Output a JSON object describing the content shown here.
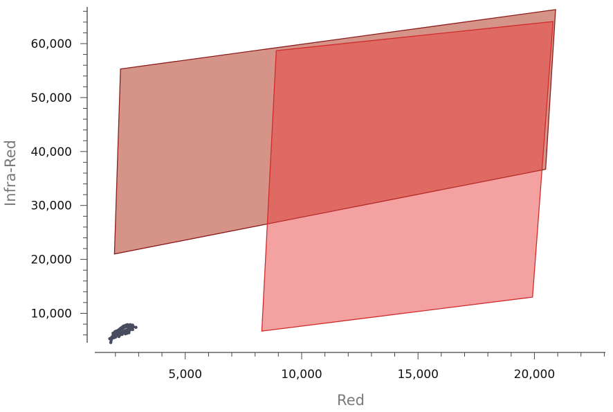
{
  "chart_data": {
    "type": "scatter",
    "title": "",
    "xlabel": "Red",
    "ylabel": "Infra-Red",
    "xlim": [
      0,
      23000
    ],
    "ylim": [
      4000,
      66500
    ],
    "x_ticks": [
      5000,
      10000,
      15000,
      20000
    ],
    "x_tick_labels": [
      "5,000",
      "10,000",
      "15,000",
      "20,000"
    ],
    "y_ticks": [
      10000,
      20000,
      30000,
      40000,
      50000,
      60000
    ],
    "y_tick_labels": [
      "10,000",
      "20,000",
      "30,000",
      "40,000",
      "50,000",
      "60,000"
    ],
    "grid": false,
    "legend": "none",
    "regions": [
      {
        "fill": "#c05a4a",
        "fill_opacity": 0.65,
        "stroke": "#8b1a1a",
        "vertices": [
          [
            2220,
            55300
          ],
          [
            20910,
            66300
          ],
          [
            20480,
            36700
          ],
          [
            1960,
            21000
          ]
        ]
      },
      {
        "fill": "#e83a3a",
        "fill_opacity": 0.48,
        "stroke": "#d02a2a",
        "vertices": [
          [
            8910,
            58700
          ],
          [
            20800,
            64100
          ],
          [
            19920,
            13000
          ],
          [
            8290,
            6700
          ]
        ]
      }
    ],
    "point_color": "#474d5e",
    "points": [
      [
        1800,
        4600
      ],
      [
        1760,
        5300
      ],
      [
        1850,
        5600
      ],
      [
        1900,
        5900
      ],
      [
        1960,
        6100
      ],
      [
        2020,
        6250
      ],
      [
        2080,
        6500
      ],
      [
        2140,
        6700
      ],
      [
        2200,
        6900
      ],
      [
        2260,
        7050
      ],
      [
        2320,
        7250
      ],
      [
        2380,
        7400
      ],
      [
        2440,
        7500
      ],
      [
        2500,
        7600
      ],
      [
        2560,
        7650
      ],
      [
        2620,
        7600
      ],
      [
        2680,
        7500
      ],
      [
        2880,
        7400
      ],
      [
        1820,
        5000
      ],
      [
        1880,
        5400
      ],
      [
        1940,
        5500
      ],
      [
        2000,
        5800
      ],
      [
        2060,
        6000
      ],
      [
        2120,
        6100
      ],
      [
        2180,
        6300
      ],
      [
        2240,
        6400
      ],
      [
        2300,
        6500
      ],
      [
        2360,
        6700
      ],
      [
        2420,
        6800
      ],
      [
        2480,
        6900
      ],
      [
        2540,
        7000
      ],
      [
        2600,
        7100
      ],
      [
        2660,
        7200
      ],
      [
        2720,
        7300
      ],
      [
        2140,
        5900
      ],
      [
        2200,
        6000
      ],
      [
        2260,
        6200
      ],
      [
        2320,
        6300
      ],
      [
        2380,
        6600
      ],
      [
        2440,
        6700
      ],
      [
        2500,
        6800
      ],
      [
        2560,
        7300
      ],
      [
        2620,
        7400
      ],
      [
        2680,
        7700
      ],
      [
        2740,
        7800
      ],
      [
        2100,
        6800
      ],
      [
        2160,
        7000
      ],
      [
        2220,
        7200
      ],
      [
        2280,
        7400
      ],
      [
        2340,
        7600
      ],
      [
        2400,
        7700
      ],
      [
        2460,
        7800
      ],
      [
        2520,
        7900
      ],
      [
        2580,
        7800
      ],
      [
        2640,
        7900
      ],
      [
        2700,
        7700
      ],
      [
        1980,
        6600
      ],
      [
        2040,
        6700
      ],
      [
        2500,
        6300
      ],
      [
        2560,
        6600
      ],
      [
        2620,
        6900
      ],
      [
        2680,
        7100
      ],
      [
        2740,
        7000
      ],
      [
        2780,
        7500
      ],
      [
        1900,
        6300
      ],
      [
        2010,
        5600
      ],
      [
        2150,
        5700
      ],
      [
        2290,
        6100
      ],
      [
        2430,
        6200
      ],
      [
        2580,
        6400
      ]
    ]
  }
}
